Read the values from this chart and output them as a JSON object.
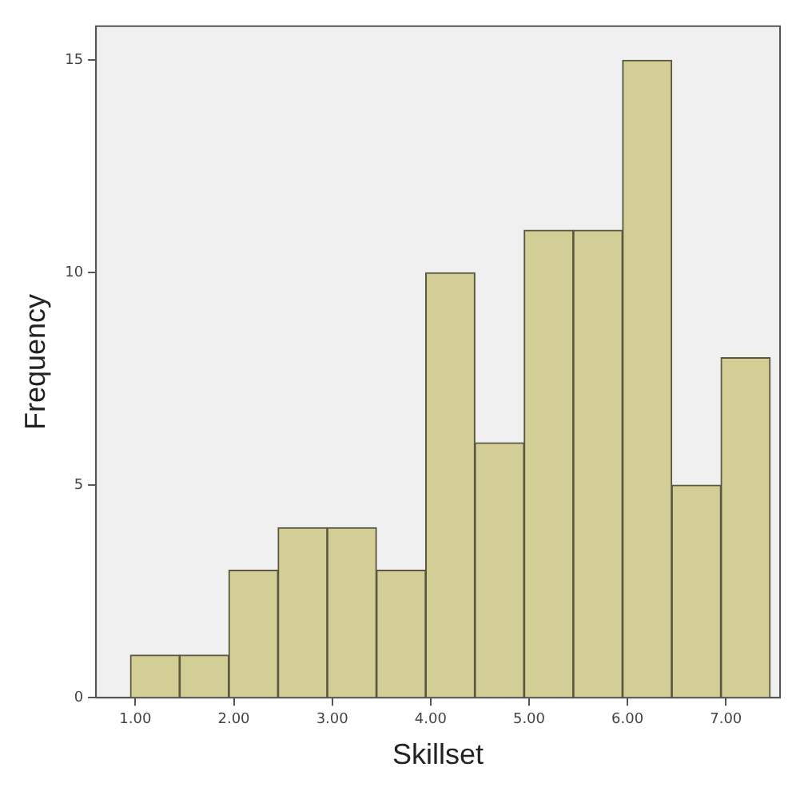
{
  "chart_data": {
    "type": "histogram",
    "xlabel": "Skillset",
    "ylabel": "Frequency",
    "bins": [
      0.95,
      1.45,
      1.95,
      2.45,
      2.95,
      3.45,
      3.95,
      4.45,
      4.95,
      5.45,
      5.95,
      6.45,
      6.95,
      7.45
    ],
    "values": [
      1,
      1,
      3,
      4,
      4,
      3,
      10,
      6,
      11,
      11,
      15,
      5,
      8
    ],
    "color": "#d3ce96",
    "xlim": [
      0.6,
      7.55
    ],
    "xticks": [
      {
        "value": 1,
        "label": "1.00"
      },
      {
        "value": 2,
        "label": "2.00"
      },
      {
        "value": 3,
        "label": "3.00"
      },
      {
        "value": 4,
        "label": "4.00"
      },
      {
        "value": 5,
        "label": "5.00"
      },
      {
        "value": 6,
        "label": "6.00"
      },
      {
        "value": 7,
        "label": "7.00"
      }
    ],
    "ylim": [
      0,
      15.8
    ],
    "yticks": [
      0,
      5,
      10,
      15
    ],
    "grid": false,
    "legend": false
  }
}
